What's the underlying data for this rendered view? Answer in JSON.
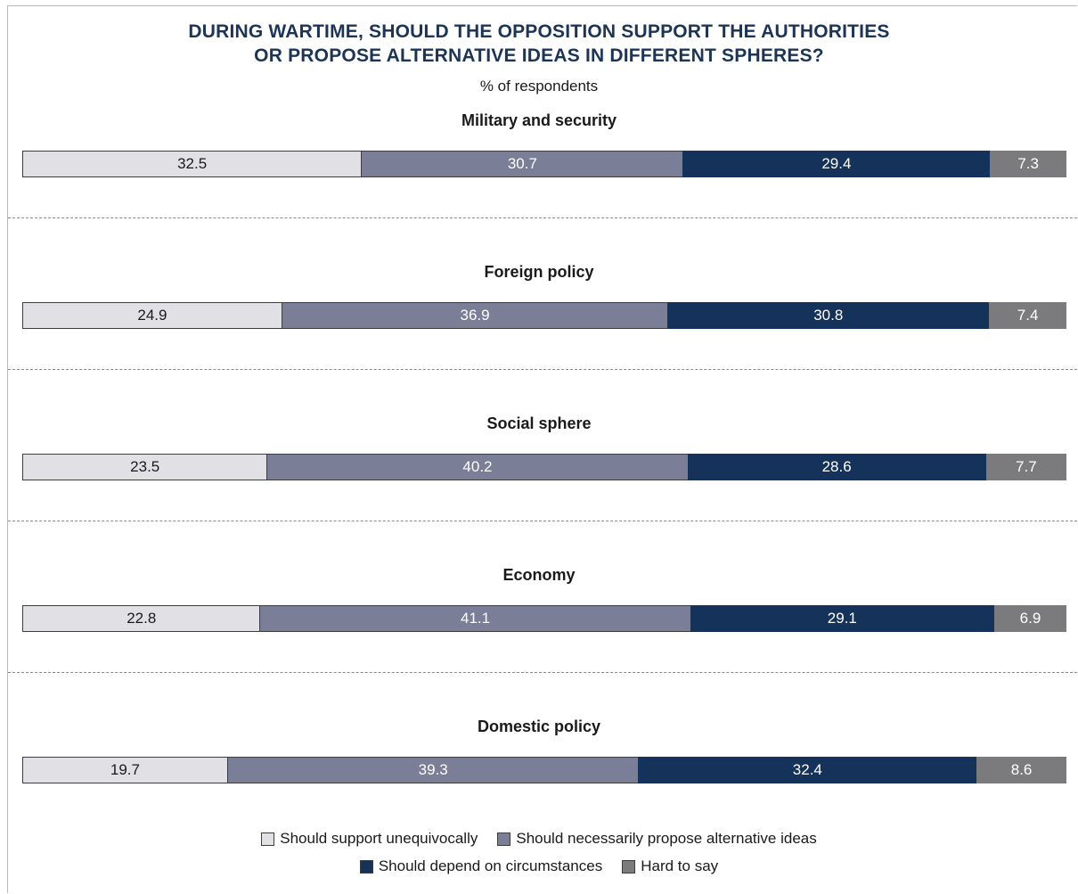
{
  "title_line1": "DURING WARTIME, SHOULD THE OPPOSITION SUPPORT THE AUTHORITIES",
  "title_line2": "OR PROPOSE ALTERNATIVE IDEAS IN DIFFERENT SPHERES?",
  "subtitle": "% of respondents",
  "colors": {
    "support": "#e1e1e5",
    "propose": "#7b7e97",
    "depend": "#15335a",
    "hard": "#7b7b7d"
  },
  "chart_data": {
    "type": "bar",
    "orientation": "horizontal",
    "stacked": true,
    "title": "DURING WARTIME, SHOULD THE OPPOSITION SUPPORT THE AUTHORITIES OR PROPOSE ALTERNATIVE IDEAS IN DIFFERENT SPHERES?",
    "subtitle": "% of respondents",
    "categories": [
      "Military and security",
      "Foreign policy",
      "Social sphere",
      "Economy",
      "Domestic policy"
    ],
    "series": [
      {
        "name": "Should support unequivocally",
        "values": [
          32.5,
          24.9,
          23.5,
          22.8,
          19.7
        ]
      },
      {
        "name": "Should necessarily propose alternative ideas",
        "values": [
          30.7,
          36.9,
          40.2,
          41.1,
          39.3
        ]
      },
      {
        "name": "Should depend on circumstances",
        "values": [
          29.4,
          30.8,
          28.6,
          29.1,
          32.4
        ]
      },
      {
        "name": "Hard to say",
        "values": [
          7.3,
          7.4,
          7.7,
          6.9,
          8.6
        ]
      }
    ],
    "legend_position": "bottom",
    "grid": false
  }
}
